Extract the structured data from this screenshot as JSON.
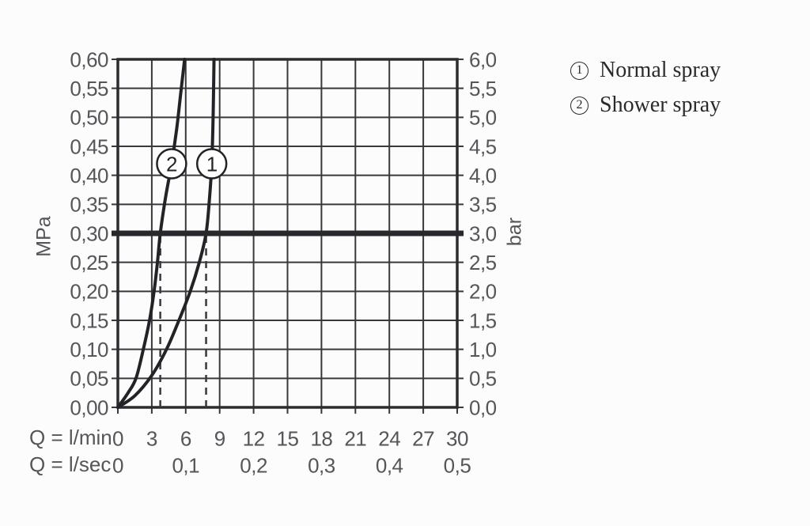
{
  "page": {
    "background": "#fcfcfc"
  },
  "legend": {
    "items": [
      {
        "symbol": "1",
        "label": "Normal spray"
      },
      {
        "symbol": "2",
        "label": "Shower spray"
      }
    ]
  },
  "chart_data": {
    "type": "line",
    "grid": true,
    "legend_position": "top-right",
    "x_axis": {
      "range_lmin": [
        0,
        30
      ],
      "gridline_step_lmin": 3,
      "rows": [
        {
          "label": "Q = l/min",
          "ticks": [
            "0",
            "3",
            "6",
            "9",
            "12",
            "15",
            "18",
            "21",
            "24",
            "27",
            "30"
          ],
          "tick_q": [
            0,
            3,
            6,
            9,
            12,
            15,
            18,
            21,
            24,
            27,
            30
          ]
        },
        {
          "label": "Q = l/sec",
          "ticks": [
            "0",
            "0,1",
            "0,2",
            "0,3",
            "0,4",
            "0,5"
          ],
          "tick_q": [
            0,
            6,
            12,
            18,
            24,
            30
          ]
        }
      ]
    },
    "y_axis_left": {
      "unit": "MPa",
      "range_mpa": [
        0,
        0.6
      ],
      "gridline_step_mpa": 0.05,
      "ticks": [
        "0,60",
        "0,55",
        "0,50",
        "0,45",
        "0,40",
        "0,35",
        "0,30",
        "0,25",
        "0,20",
        "0,15",
        "0,10",
        "0,05",
        "0,00"
      ]
    },
    "y_axis_right": {
      "unit": "bar",
      "range_bar": [
        0,
        6
      ],
      "ticks": [
        "6,0",
        "5,5",
        "5,0",
        "4,5",
        "4,0",
        "3,5",
        "3,0",
        "2,5",
        "2,0",
        "1,5",
        "1,0",
        "0,5",
        "0,0"
      ]
    },
    "reference_line": {
      "pressure_mpa": 0.3,
      "pressure_bar": 3.0
    },
    "dashed_guides_lmin": [
      3.75,
      7.8
    ],
    "series": [
      {
        "marker": "1",
        "name": "Normal spray",
        "marker_pos": {
          "q_lmin": 8.3,
          "p_mpa": 0.42
        },
        "points_q_mpa": [
          [
            0,
            0
          ],
          [
            1.5,
            0.02
          ],
          [
            3,
            0.055
          ],
          [
            4.3,
            0.1
          ],
          [
            5.4,
            0.15
          ],
          [
            6.4,
            0.2
          ],
          [
            7.2,
            0.25
          ],
          [
            7.8,
            0.3
          ],
          [
            8.1,
            0.36
          ],
          [
            8.3,
            0.42
          ],
          [
            8.42,
            0.5
          ],
          [
            8.5,
            0.6
          ]
        ]
      },
      {
        "marker": "2",
        "name": "Shower spray",
        "marker_pos": {
          "q_lmin": 4.75,
          "p_mpa": 0.42
        },
        "points_q_mpa": [
          [
            0,
            0
          ],
          [
            0.9,
            0.025
          ],
          [
            1.6,
            0.05
          ],
          [
            2.25,
            0.1
          ],
          [
            2.8,
            0.15
          ],
          [
            3.2,
            0.2
          ],
          [
            3.5,
            0.25
          ],
          [
            3.75,
            0.3
          ],
          [
            4.2,
            0.36
          ],
          [
            4.75,
            0.42
          ],
          [
            5.2,
            0.48
          ],
          [
            5.55,
            0.54
          ],
          [
            5.9,
            0.6
          ]
        ]
      }
    ],
    "colors": {
      "grid": "#39393d",
      "border": "#2c2c30",
      "curve": "#232327",
      "reference_line": "#29292d",
      "dashed": "#39393d",
      "tick_label": "#55555a",
      "legend_text": "#2a2a2c",
      "background": "#fcfcfc"
    }
  }
}
